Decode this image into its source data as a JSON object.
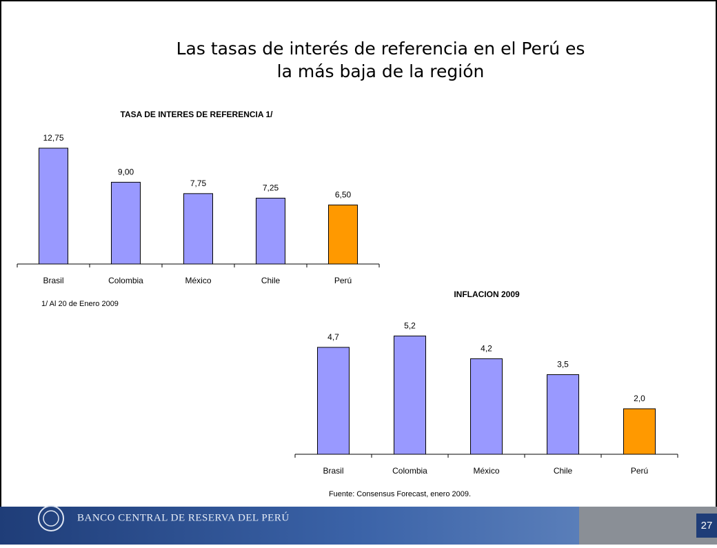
{
  "slide": {
    "title_lines": [
      "Las tasas de interés de referencia en el Perú es",
      "la más baja de la región"
    ],
    "footer": "BANCO CENTRAL DE RESERVA DEL PERÚ",
    "page_number": "27"
  },
  "chart_data": [
    {
      "type": "bar",
      "title": "TASA DE INTERES DE REFERENCIA  1/",
      "categories": [
        "Brasil",
        "Colombia",
        "México",
        "Chile",
        "Perú"
      ],
      "values": [
        12.75,
        9.0,
        7.75,
        7.25,
        6.5
      ],
      "value_labels": [
        "12,75",
        "9,00",
        "7,75",
        "7,25",
        "6,50"
      ],
      "colors": [
        "#9999ff",
        "#9999ff",
        "#9999ff",
        "#9999ff",
        "#ff9900"
      ],
      "note": "1/  Al 20 de Enero 2009"
    },
    {
      "type": "bar",
      "title": "INFLACION 2009",
      "categories": [
        "Brasil",
        "Colombia",
        "México",
        "Chile",
        "Perú"
      ],
      "values": [
        4.7,
        5.2,
        4.2,
        3.5,
        2.0
      ],
      "value_labels": [
        "4,7",
        "5,2",
        "4,2",
        "3,5",
        "2,0"
      ],
      "colors": [
        "#9999ff",
        "#9999ff",
        "#9999ff",
        "#9999ff",
        "#ff9900"
      ],
      "note": "Fuente: Consensus Forecast, enero 2009."
    }
  ]
}
